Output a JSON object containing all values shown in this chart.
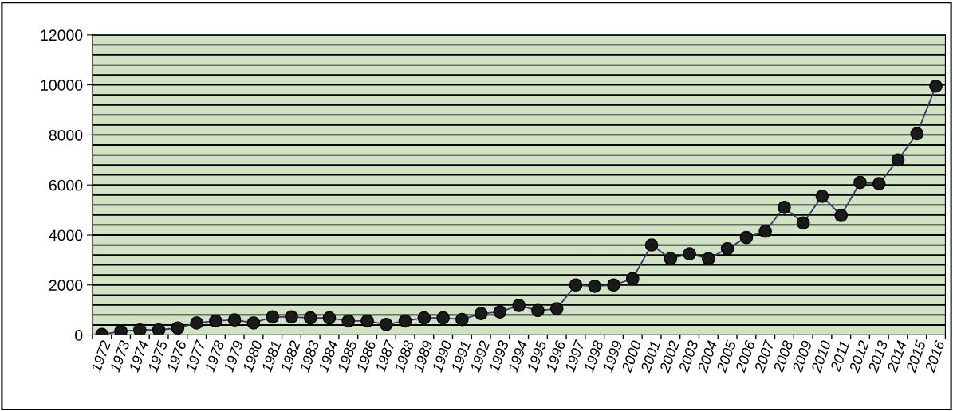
{
  "chart_data": {
    "type": "line",
    "categories": [
      "1972",
      "1973",
      "1974",
      "1975",
      "1976",
      "1977",
      "1978",
      "1979",
      "1980",
      "1981",
      "1982",
      "1983",
      "1984",
      "1985",
      "1986",
      "1987",
      "1988",
      "1989",
      "1990",
      "1991",
      "1992",
      "1993",
      "1994",
      "1995",
      "1996",
      "1997",
      "1998",
      "1999",
      "2000",
      "2001",
      "2002",
      "2003",
      "2004",
      "2005",
      "2006",
      "2007",
      "2008",
      "2009",
      "2010",
      "2011",
      "2012",
      "2013",
      "2014",
      "2015",
      "2016"
    ],
    "series": [
      {
        "color": "#2e3a6e",
        "values": [
          20,
          150,
          200,
          200,
          280,
          480,
          560,
          600,
          480,
          720,
          720,
          680,
          680,
          560,
          560,
          420,
          560,
          680,
          680,
          620,
          860,
          920,
          1180,
          980,
          1050,
          2000,
          1950,
          2000,
          2250,
          3600,
          3050,
          3250,
          3050,
          3450,
          3900,
          4150,
          5100,
          4480,
          5550,
          4780,
          6100,
          6050,
          7000,
          8050,
          9950
        ]
      }
    ],
    "ylim": [
      0,
      12000
    ],
    "yticks": [
      0,
      {
        "value": 400,
        "label": null
      },
      {
        "value": 800,
        "label": null
      },
      {
        "value": 1200,
        "label": null
      },
      {
        "value": 1600,
        "label": null
      },
      2000,
      {
        "value": 2400,
        "label": null
      },
      {
        "value": 2800,
        "label": null
      },
      {
        "value": 3200,
        "label": null
      },
      {
        "value": 3600,
        "label": null
      },
      4000,
      {
        "value": 4400,
        "label": null
      },
      {
        "value": 4800,
        "label": null
      },
      {
        "value": 5200,
        "label": null
      },
      {
        "value": 5600,
        "label": null
      },
      6000,
      {
        "value": 6400,
        "label": null
      },
      {
        "value": 6800,
        "label": null
      },
      {
        "value": 7200,
        "label": null
      },
      {
        "value": 7600,
        "label": null
      },
      8000,
      {
        "value": 8400,
        "label": null
      },
      {
        "value": 8800,
        "label": null
      },
      {
        "value": 9200,
        "label": null
      },
      {
        "value": 9600,
        "label": null
      },
      10000,
      {
        "value": 10400,
        "label": null
      },
      {
        "value": 10800,
        "label": null
      },
      {
        "value": 11200,
        "label": null
      },
      {
        "value": 11600,
        "label": null
      },
      12000
    ],
    "grid": "y",
    "marker": "circle",
    "line_style": "solid",
    "legend": false
  }
}
